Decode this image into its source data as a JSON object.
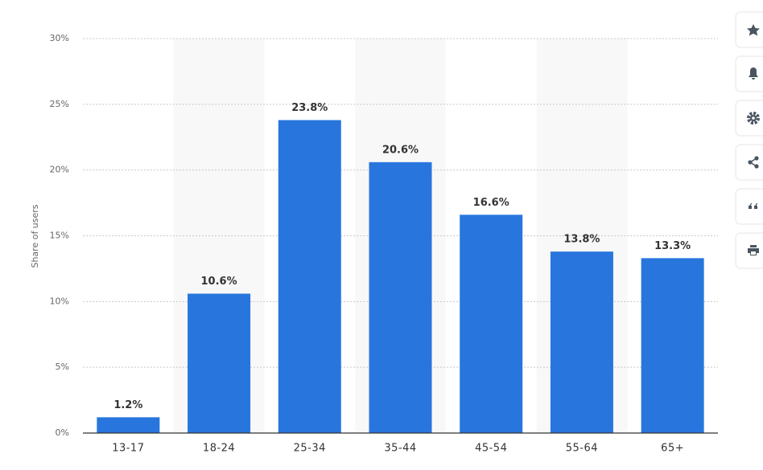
{
  "chart_data": {
    "type": "bar",
    "y_label": "Share of users",
    "categories": [
      "13-17",
      "18-24",
      "25-34",
      "35-44",
      "45-54",
      "55-64",
      "65+"
    ],
    "values": [
      1.2,
      10.6,
      23.8,
      20.6,
      16.6,
      13.8,
      13.3
    ],
    "value_labels": [
      "1.2%",
      "10.6%",
      "23.8%",
      "20.6%",
      "16.6%",
      "13.8%",
      "13.3%"
    ],
    "color": "#2876dd",
    "ylim": [
      0,
      30
    ],
    "yticks": [
      {
        "value": 0,
        "label": "0%"
      },
      {
        "value": 5,
        "label": "5%"
      },
      {
        "value": 10,
        "label": "10%"
      },
      {
        "value": 15,
        "label": "15%"
      },
      {
        "value": 20,
        "label": "20%"
      },
      {
        "value": 25,
        "label": "25%"
      },
      {
        "value": 30,
        "label": "30%"
      }
    ],
    "grid": true
  }
}
